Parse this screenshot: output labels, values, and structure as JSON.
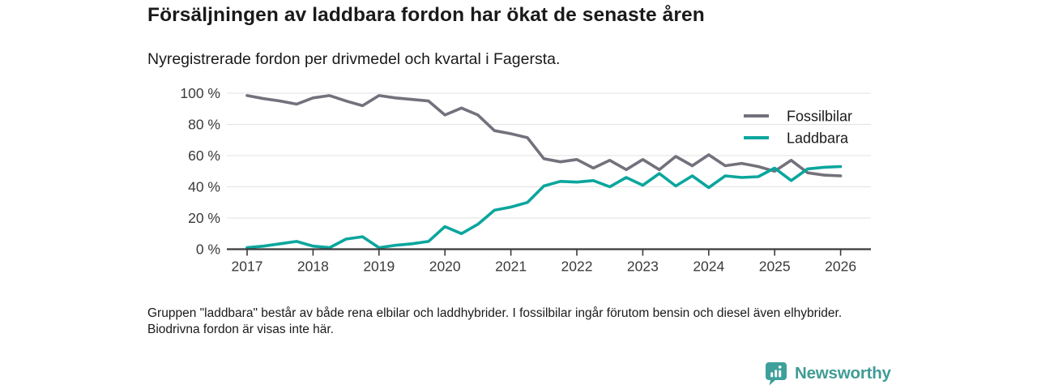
{
  "title": "Försäljningen av laddbara fordon har ökat de senaste åren",
  "subtitle": "Nyregistrerade fordon per drivmedel och kvartal i Fagersta.",
  "footnote": "Gruppen \"laddbara\" består av både rena elbilar och laddhybrider. I fossilbilar ingår förutom bensin och diesel även elhybrider. Biodrivna fordon är visas inte här.",
  "branding": {
    "logo_text": "Newsworthy",
    "logo_icon": "bar-chart-pin-icon",
    "brand_color": "#3F9C95"
  },
  "colors": {
    "fossil_line": "#73717B",
    "laddbara_line": "#0AA69D",
    "grid_line": "#e2e2e2",
    "axis_line": "#3a3a3a",
    "tick_text": "#3a3a3a",
    "legend_text": "#1a1a1a"
  },
  "chart_data": {
    "type": "line",
    "title": "Försäljningen av laddbara fordon har ökat de senaste åren",
    "subtitle": "Nyregistrerade fordon per drivmedel och kvartal i Fagersta.",
    "unit": "%",
    "x_label": "",
    "y_label": "",
    "ylim": [
      0,
      100
    ],
    "grid": true,
    "legend_position": "top-right",
    "x_tick_labels": [
      "2017",
      "2018",
      "2019",
      "2020",
      "2021",
      "2022",
      "2023",
      "2024",
      "2025",
      "2026"
    ],
    "y_tick_labels": [
      "0 %",
      "20 %",
      "40 %",
      "60 %",
      "80 %",
      "100 %"
    ],
    "y_tick_values": [
      0,
      20,
      40,
      60,
      80,
      100
    ],
    "x_start": "2017-Q1",
    "x_end": "2026-Q1",
    "points_per_year": 4,
    "series": [
      {
        "name": "Fossilbilar",
        "color": "#73717B",
        "values": [
          98.5,
          96.5,
          95,
          93,
          97,
          98.5,
          95,
          92,
          98.5,
          97,
          96,
          95,
          86,
          90.5,
          86,
          76,
          74,
          71.5,
          58,
          56,
          57.5,
          52,
          57,
          51,
          57.5,
          51,
          59.5,
          53.5,
          60.5,
          53.5,
          55,
          53,
          50,
          57,
          49,
          47.5,
          47
        ]
      },
      {
        "name": "Laddbara",
        "color": "#0AA69D",
        "values": [
          1,
          2,
          3.5,
          5,
          2,
          1,
          6.5,
          8,
          1,
          2.5,
          3.5,
          5,
          14.5,
          10,
          16,
          25,
          27,
          30,
          40.5,
          43.5,
          43,
          44,
          40,
          46,
          41,
          48.5,
          40.5,
          47,
          39.5,
          47,
          46,
          46.5,
          52,
          44,
          51.5,
          52.5,
          53
        ]
      }
    ]
  }
}
